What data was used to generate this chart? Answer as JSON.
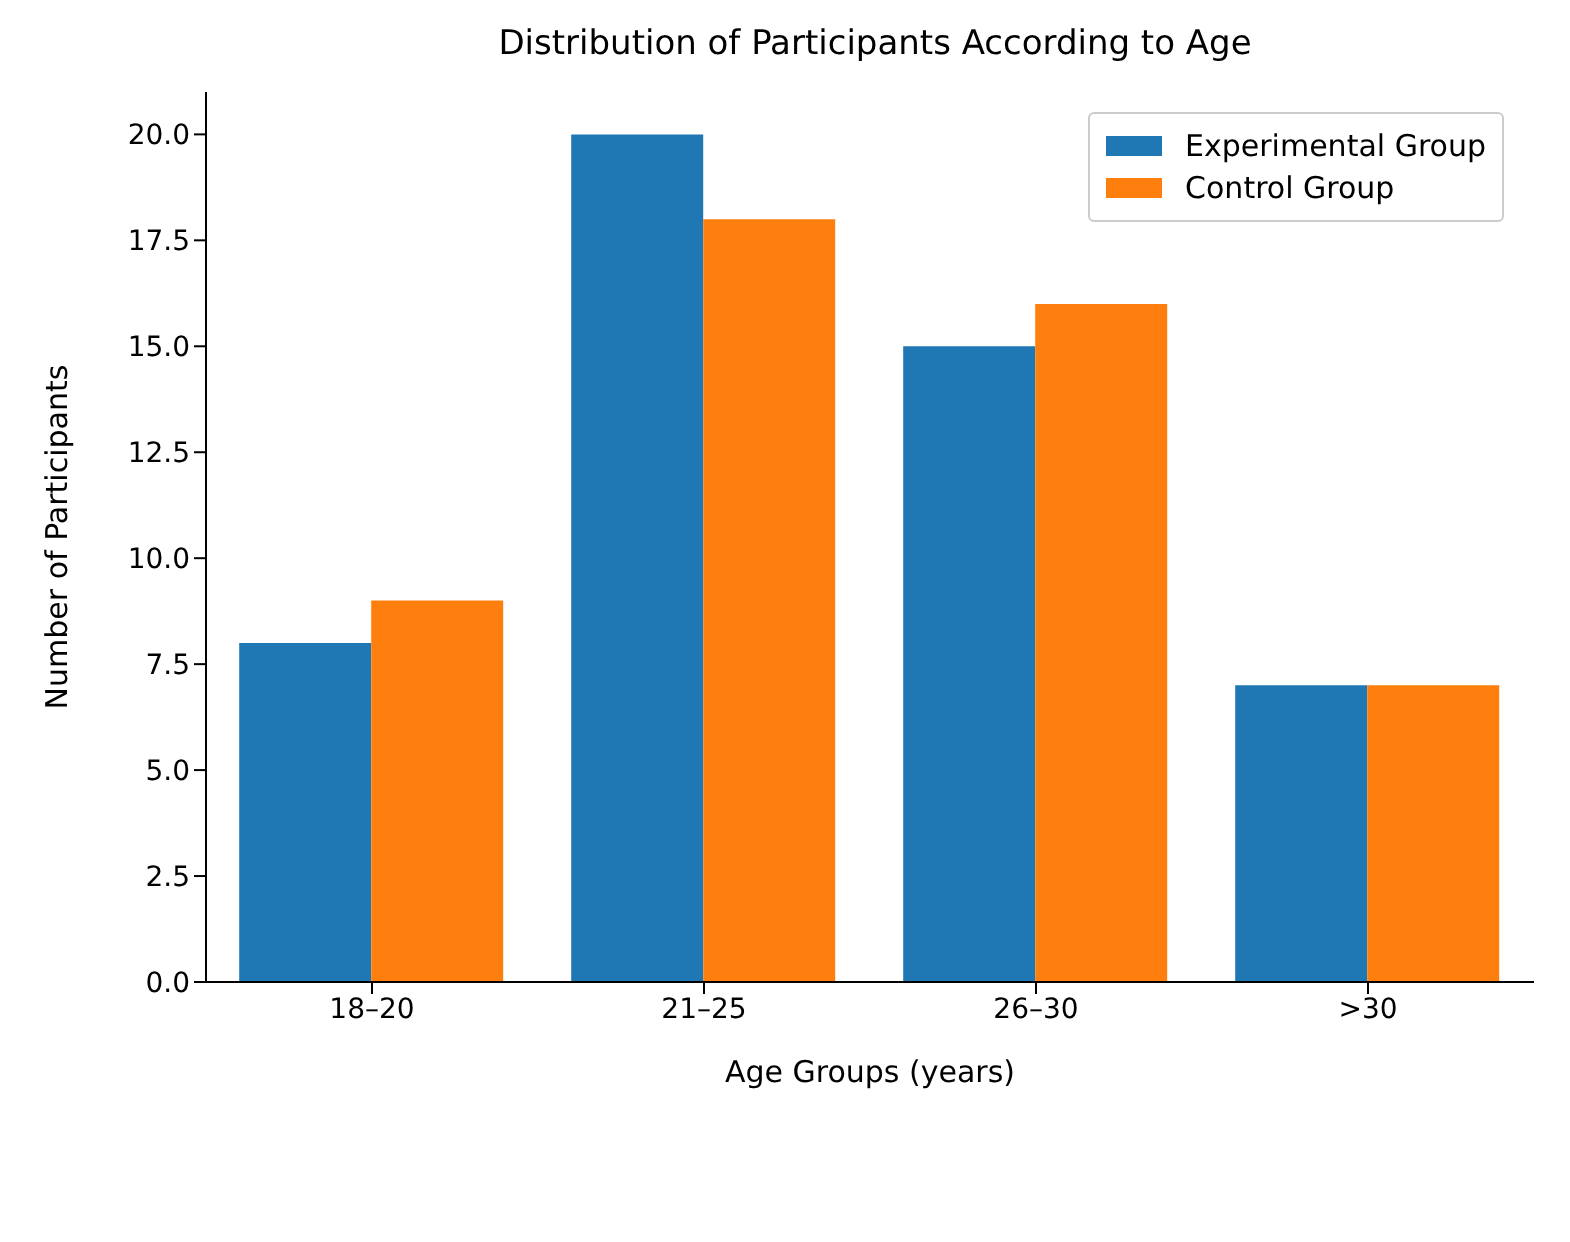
{
  "chart_data": {
    "type": "bar",
    "title": "Distribution of Participants According to Age",
    "xlabel": "Age Groups (years)",
    "ylabel": "Number of Participants",
    "categories": [
      "18–20",
      "21–25",
      "26–30",
      ">30"
    ],
    "series": [
      {
        "name": "Experimental Group",
        "color": "#1f77b4",
        "values": [
          8,
          20,
          15,
          7
        ]
      },
      {
        "name": "Control Group",
        "color": "#ff7f0e",
        "values": [
          9,
          18,
          16,
          7
        ]
      }
    ],
    "ylim": [
      0,
      21
    ],
    "yticks": [
      {
        "value": 0,
        "label": "0.0"
      },
      {
        "value": 2.5,
        "label": "2.5"
      },
      {
        "value": 5,
        "label": "5.0"
      },
      {
        "value": 7.5,
        "label": "7.5"
      },
      {
        "value": 10,
        "label": "10.0"
      },
      {
        "value": 12.5,
        "label": "12.5"
      },
      {
        "value": 15,
        "label": "15.0"
      },
      {
        "value": 17.5,
        "label": "17.5"
      },
      {
        "value": 20,
        "label": "20.0"
      }
    ],
    "grid": false,
    "legend": "top right"
  }
}
